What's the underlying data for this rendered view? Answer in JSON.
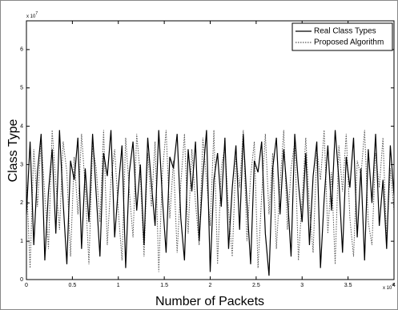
{
  "chart_data": {
    "type": "line",
    "xlabel": "Number of Packets",
    "ylabel": "Class Type",
    "x_multiplier": {
      "base": "x 10",
      "exponent": "4"
    },
    "y_multiplier": {
      "base": "x 10",
      "exponent": "7"
    },
    "xlim": [
      0,
      4
    ],
    "xticks": [
      0,
      0.5,
      1,
      1.5,
      2,
      2.5,
      3,
      3.5,
      4
    ],
    "ylim": [
      0,
      6.75
    ],
    "yticks": [
      0,
      1,
      2,
      3,
      4,
      5,
      6
    ],
    "legend": "upper right",
    "x": [
      0,
      0.04,
      0.08,
      0.12,
      0.16,
      0.2,
      0.24,
      0.28,
      0.32,
      0.36,
      0.4,
      0.44,
      0.48,
      0.52,
      0.56,
      0.6,
      0.64,
      0.68,
      0.72,
      0.76,
      0.8,
      0.84,
      0.88,
      0.92,
      0.96,
      1,
      1.04,
      1.08,
      1.12,
      1.16,
      1.2,
      1.24,
      1.28,
      1.32,
      1.36,
      1.4,
      1.44,
      1.48,
      1.52,
      1.56,
      1.6,
      1.64,
      1.68,
      1.72,
      1.76,
      1.8,
      1.84,
      1.88,
      1.92,
      1.96,
      2,
      2.04,
      2.08,
      2.12,
      2.16,
      2.2,
      2.24,
      2.28,
      2.32,
      2.36,
      2.4,
      2.44,
      2.48,
      2.52,
      2.56,
      2.6,
      2.64,
      2.68,
      2.72,
      2.76,
      2.8,
      2.84,
      2.88,
      2.92,
      2.96,
      3,
      3.04,
      3.08,
      3.12,
      3.16,
      3.2,
      3.24,
      3.28,
      3.32,
      3.36,
      3.4,
      3.44,
      3.48,
      3.52,
      3.56,
      3.6,
      3.64,
      3.68,
      3.72,
      3.76,
      3.8,
      3.84,
      3.88,
      3.92,
      3.96,
      4
    ],
    "series": [
      {
        "name": "Real Class Types",
        "color": "#000000",
        "style": "solid",
        "values": [
          1.7,
          3.6,
          0.9,
          2.8,
          3.8,
          0.5,
          2.3,
          3.4,
          1.2,
          3.9,
          2.0,
          0.4,
          3.1,
          2.6,
          3.7,
          0.8,
          2.9,
          1.5,
          3.8,
          2.2,
          0.6,
          3.3,
          2.7,
          3.9,
          1.1,
          2.4,
          3.5,
          0.3,
          2.8,
          3.6,
          1.8,
          3.0,
          0.9,
          3.7,
          2.5,
          1.4,
          3.9,
          2.1,
          0.7,
          3.2,
          2.9,
          3.8,
          1.6,
          0.5,
          3.4,
          2.3,
          3.6,
          1.0,
          2.7,
          3.9,
          0.2,
          2.6,
          3.3,
          1.9,
          3.7,
          0.8,
          2.4,
          3.5,
          1.3,
          3.8,
          2.0,
          0.4,
          3.1,
          2.8,
          3.6,
          1.2,
          0.1,
          2.9,
          3.7,
          1.7,
          3.4,
          2.2,
          0.6,
          3.8,
          2.5,
          1.5,
          3.3,
          0.9,
          2.7,
          3.6,
          0.3,
          2.1,
          3.5,
          1.8,
          3.9,
          2.6,
          0.7,
          3.2,
          2.4,
          3.7,
          1.1,
          2.9,
          0.5,
          3.4,
          2.0,
          3.8,
          1.4,
          2.6,
          0.8,
          3.5,
          2.2
        ]
      },
      {
        "name": "Proposed Algorithm",
        "color": "#555555",
        "style": "dotted",
        "values": [
          2.6,
          0.3,
          3.4,
          1.9,
          3.7,
          2.2,
          0.8,
          3.9,
          2.5,
          1.3,
          3.6,
          2.8,
          0.6,
          3.2,
          1.7,
          3.8,
          2.4,
          0.4,
          3.5,
          2.9,
          1.5,
          3.9,
          0.9,
          2.6,
          3.4,
          1.8,
          0.5,
          3.7,
          2.3,
          1.1,
          3.8,
          2.7,
          0.6,
          3.3,
          1.9,
          3.6,
          0.2,
          2.8,
          3.9,
          1.6,
          3.1,
          0.7,
          2.5,
          3.8,
          1.2,
          3.4,
          2.0,
          0.9,
          3.7,
          2.6,
          1.4,
          3.9,
          0.4,
          2.9,
          3.5,
          1.8,
          0.6,
          3.2,
          2.4,
          3.9,
          1.0,
          2.7,
          3.6,
          0.3,
          2.2,
          3.8,
          1.7,
          3.3,
          0.8,
          2.5,
          3.9,
          1.3,
          2.9,
          3.6,
          0.5,
          2.1,
          3.7,
          1.9,
          0.7,
          3.4,
          2.6,
          3.9,
          1.2,
          2.8,
          0.4,
          3.5,
          2.3,
          3.8,
          1.6,
          0.6,
          3.1,
          2.7,
          3.9,
          1.5,
          0.9,
          3.3,
          2.4,
          3.7,
          1.0,
          2.9,
          1.8
        ]
      }
    ]
  }
}
